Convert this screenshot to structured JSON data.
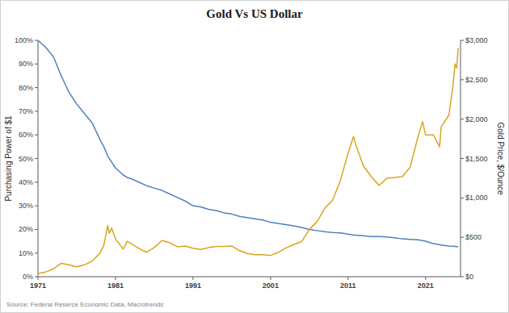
{
  "chart_data": {
    "type": "line",
    "title": "Gold Vs US Dollar",
    "y_label": "Purchasing Power of $1",
    "y2_label": "Gold Price, $/Ounce",
    "source": "Source: Federal Reserce Economic Data, Macrotrends",
    "grid": false,
    "x": [
      1971,
      1972,
      1973,
      1974,
      1975,
      1976,
      1977,
      1978,
      1979,
      1979.5,
      1980,
      1980.2,
      1980.5,
      1981,
      1982,
      1982.5,
      1983,
      1984,
      1985,
      1986,
      1987,
      1988,
      1989,
      1990,
      1991,
      1992,
      1993,
      1994,
      1995,
      1996,
      1997,
      1998,
      1999,
      2000,
      2001,
      2002,
      2003,
      2004,
      2005,
      2006,
      2007,
      2008,
      2009,
      2010,
      2011,
      2011.7,
      2012,
      2013,
      2014,
      2015,
      2016,
      2017,
      2018,
      2019,
      2020,
      2020.6,
      2021,
      2022,
      2022.8,
      2023,
      2024,
      2024.5,
      2024.8,
      2025,
      2025.2
    ],
    "xlim": [
      1971,
      2025.5
    ],
    "xticks": [
      1971,
      1981,
      1991,
      2001,
      2011,
      2021
    ],
    "ylim": [
      0,
      100
    ],
    "yticks": [
      {
        "value": 0,
        "label": "0%"
      },
      {
        "value": 10,
        "label": "10%"
      },
      {
        "value": 20,
        "label": "20%"
      },
      {
        "value": 30,
        "label": "30%"
      },
      {
        "value": 40,
        "label": "40%"
      },
      {
        "value": 50,
        "label": "50%"
      },
      {
        "value": 60,
        "label": "60%"
      },
      {
        "value": 70,
        "label": "70%"
      },
      {
        "value": 80,
        "label": "80%"
      },
      {
        "value": 90,
        "label": "90%"
      },
      {
        "value": 100,
        "label": "100%"
      }
    ],
    "y2lim": [
      0,
      3000
    ],
    "y2ticks": [
      {
        "value": 0,
        "label": "$0"
      },
      {
        "value": 500,
        "label": "$500"
      },
      {
        "value": 1000,
        "label": "$1,000"
      },
      {
        "value": 1500,
        "label": "$1,500"
      },
      {
        "value": 2000,
        "label": "$2,000"
      },
      {
        "value": 2500,
        "label": "$2,500"
      },
      {
        "value": 3000,
        "label": "$3,000"
      }
    ],
    "series": [
      {
        "name": "Purchasing Power of $1",
        "color": "#4f81bd",
        "axis": "y",
        "values": [
          100,
          97,
          93,
          85,
          78,
          73,
          69,
          65,
          58,
          55,
          51,
          50,
          48.5,
          46,
          43,
          42,
          41.5,
          40,
          38.5,
          37.5,
          36.5,
          35,
          33.5,
          32,
          30,
          29.5,
          28.5,
          28,
          27,
          26.5,
          25.5,
          25,
          24.5,
          24,
          23,
          22.5,
          22,
          21.5,
          20.8,
          20,
          19.5,
          19,
          18.7,
          18.5,
          18,
          17.7,
          17.6,
          17.3,
          17,
          17,
          16.8,
          16.5,
          16,
          15.8,
          15.6,
          15.3,
          15,
          14,
          13.6,
          13.4,
          13,
          12.9,
          12.8,
          12.7,
          12.6
        ]
      },
      {
        "name": "Gold Price, $/Ounce",
        "color": "#d9a520",
        "axis": "y2",
        "values": [
          40,
          60,
          100,
          170,
          150,
          125,
          150,
          200,
          300,
          400,
          650,
          550,
          620,
          480,
          350,
          450,
          420,
          360,
          310,
          370,
          460,
          430,
          380,
          390,
          360,
          345,
          370,
          385,
          385,
          390,
          330,
          295,
          280,
          280,
          270,
          310,
          365,
          410,
          445,
          600,
          700,
          870,
          970,
          1220,
          1570,
          1780,
          1670,
          1400,
          1270,
          1160,
          1250,
          1260,
          1270,
          1390,
          1770,
          1970,
          1800,
          1800,
          1650,
          1900,
          2050,
          2400,
          2700,
          2650,
          2900
        ]
      }
    ]
  }
}
